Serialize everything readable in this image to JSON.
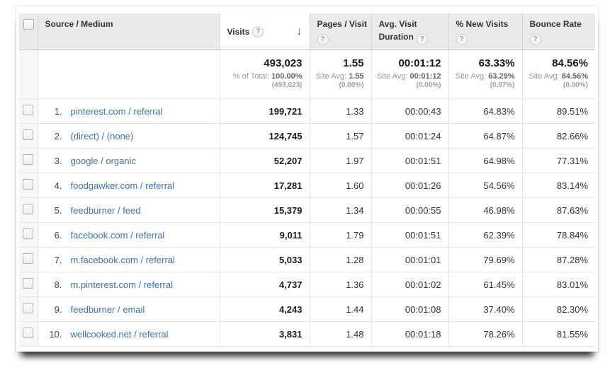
{
  "colors": {
    "link_blue": "#3a73b9",
    "header_bg": "#ebebeb",
    "sub_gray": "#999999",
    "text_dark": "#333333"
  },
  "table": {
    "header": {
      "source_medium": "Source / Medium",
      "visits": "Visits",
      "pages_visit": "Pages / Visit",
      "avg_visit_line1": "Avg. Visit",
      "avg_visit_line2": "Duration",
      "new_visits": "% New Visits",
      "bounce_rate": "Bounce Rate",
      "help_glyph": "?",
      "sort_arrow": "↓"
    },
    "summary": {
      "visits": {
        "value": "493,023",
        "sub_label": "% of Total:",
        "sub_value": "100.00%",
        "sub2": "(493,023)"
      },
      "pages_visit": {
        "value": "1.55",
        "sub_label": "Site Avg:",
        "sub_value": "1.55",
        "sub2": "(0.00%)"
      },
      "avg_duration": {
        "value": "00:01:12",
        "sub_label": "Site Avg:",
        "sub_value": "00:01:12",
        "sub2": "(0.00%)"
      },
      "new_visits": {
        "value": "63.33%",
        "sub_label": "Site Avg:",
        "sub_value": "63.29%",
        "sub2": "(0.07%)"
      },
      "bounce_rate": {
        "value": "84.56%",
        "sub_label": "Site Avg:",
        "sub_value": "84.56%",
        "sub2": "(0.00%)"
      }
    },
    "rows": [
      {
        "index": "1.",
        "source": "pinterest.com / referral",
        "visits": "199,721",
        "pages_visit": "1.33",
        "avg_duration": "00:00:43",
        "new_visits": "64.83%",
        "bounce_rate": "89.51%"
      },
      {
        "index": "2.",
        "source": "(direct) / (none)",
        "visits": "124,745",
        "pages_visit": "1.57",
        "avg_duration": "00:01:24",
        "new_visits": "64.87%",
        "bounce_rate": "82.66%"
      },
      {
        "index": "3.",
        "source": "google / organic",
        "visits": "52,207",
        "pages_visit": "1.97",
        "avg_duration": "00:01:51",
        "new_visits": "64.98%",
        "bounce_rate": "77.31%"
      },
      {
        "index": "4.",
        "source": "foodgawker.com / referral",
        "visits": "17,281",
        "pages_visit": "1.60",
        "avg_duration": "00:01:26",
        "new_visits": "54.56%",
        "bounce_rate": "83.14%"
      },
      {
        "index": "5.",
        "source": "feedburner / feed",
        "visits": "15,379",
        "pages_visit": "1.34",
        "avg_duration": "00:00:55",
        "new_visits": "46.98%",
        "bounce_rate": "87.63%"
      },
      {
        "index": "6.",
        "source": "facebook.com / referral",
        "visits": "9,011",
        "pages_visit": "1.79",
        "avg_duration": "00:01:51",
        "new_visits": "62.39%",
        "bounce_rate": "78.84%"
      },
      {
        "index": "7.",
        "source": "m.facebook.com / referral",
        "visits": "5,033",
        "pages_visit": "1.28",
        "avg_duration": "00:01:01",
        "new_visits": "79.69%",
        "bounce_rate": "87.28%"
      },
      {
        "index": "8.",
        "source": "m.pinterest.com / referral",
        "visits": "4,737",
        "pages_visit": "1.36",
        "avg_duration": "00:01:02",
        "new_visits": "61.45%",
        "bounce_rate": "83.01%"
      },
      {
        "index": "9.",
        "source": "feedburner / email",
        "visits": "4,243",
        "pages_visit": "1.44",
        "avg_duration": "00:01:08",
        "new_visits": "37.40%",
        "bounce_rate": "82.30%"
      },
      {
        "index": "10.",
        "source": "wellcooked.net / referral",
        "visits": "3,831",
        "pages_visit": "1.48",
        "avg_duration": "00:01:18",
        "new_visits": "78.26%",
        "bounce_rate": "81.55%"
      }
    ]
  }
}
